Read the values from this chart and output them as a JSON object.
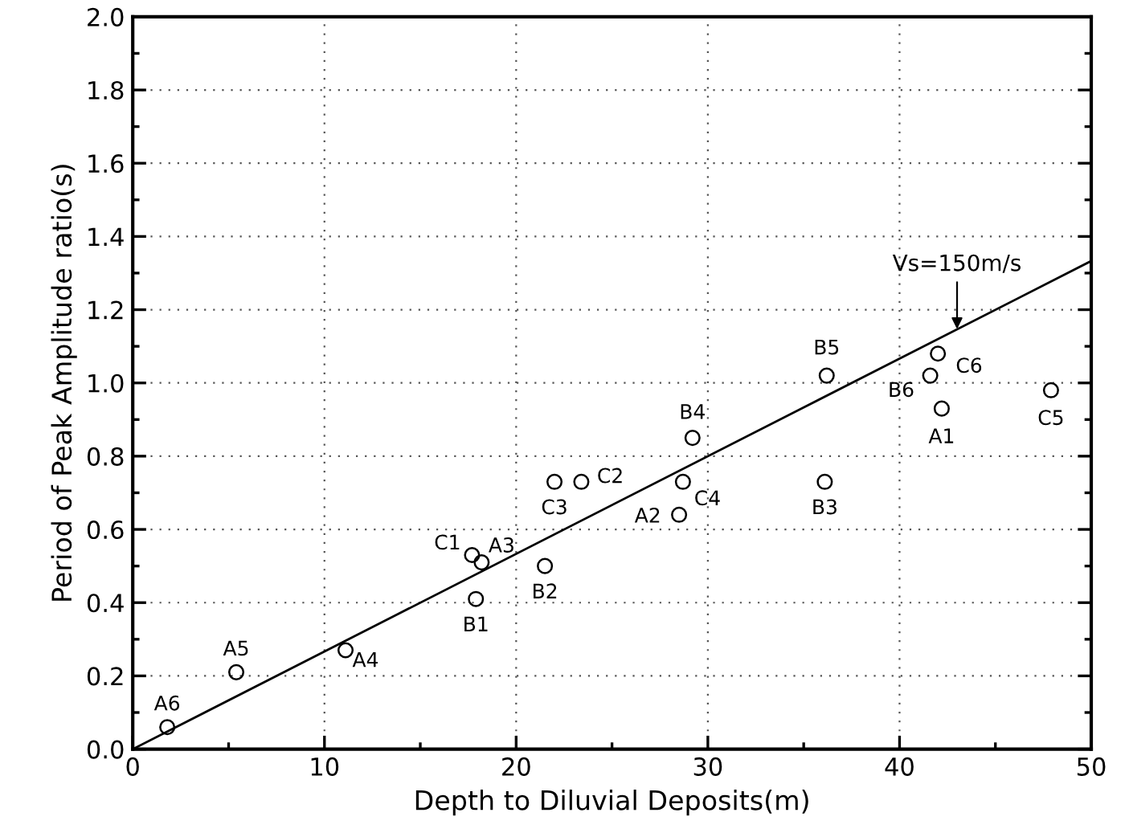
{
  "chart_data": {
    "type": "scatter",
    "xlabel": "Depth to Diluvial Deposits(m)",
    "ylabel": "Period of Peak Amplitude ratio(s)",
    "series": [
      {
        "color": "#000000",
        "marker": "circle",
        "x": [
          1.8,
          5.4,
          11.1,
          17.9,
          17.7,
          18.2,
          21.5,
          22.0,
          23.4,
          28.7,
          28.5,
          29.2,
          36.2,
          36.1,
          41.6,
          42.0,
          42.2,
          47.9
        ],
        "values": [
          0.06,
          0.21,
          0.27,
          0.41,
          0.53,
          0.51,
          0.5,
          0.73,
          0.73,
          0.73,
          0.64,
          0.85,
          1.02,
          0.73,
          1.02,
          1.08,
          0.93,
          0.98
        ]
      },
      {
        "type": "line",
        "color": "#000000",
        "marker": "none",
        "line_style": "solid",
        "x": [
          0,
          50
        ],
        "values": [
          0,
          1.333
        ]
      }
    ],
    "annotations": [
      {
        "text": "A6",
        "x": 1.8,
        "y": 0.06
      },
      {
        "text": "A5",
        "x": 5.4,
        "y": 0.21
      },
      {
        "text": "A4",
        "x": 11.1,
        "y": 0.27
      },
      {
        "text": "B1",
        "x": 17.9,
        "y": 0.41
      },
      {
        "text": "C1",
        "x": 17.7,
        "y": 0.53
      },
      {
        "text": "A3",
        "x": 18.2,
        "y": 0.51
      },
      {
        "text": "B2",
        "x": 21.5,
        "y": 0.5
      },
      {
        "text": "C3",
        "x": 22.0,
        "y": 0.73
      },
      {
        "text": "C2",
        "x": 23.4,
        "y": 0.73
      },
      {
        "text": "C4",
        "x": 28.7,
        "y": 0.73
      },
      {
        "text": "A2",
        "x": 28.5,
        "y": 0.64
      },
      {
        "text": "B4",
        "x": 29.2,
        "y": 0.85
      },
      {
        "text": "B5",
        "x": 36.2,
        "y": 1.02
      },
      {
        "text": "B3",
        "x": 36.1,
        "y": 0.73
      },
      {
        "text": "B6",
        "x": 41.6,
        "y": 1.02
      },
      {
        "text": "C6",
        "x": 42.0,
        "y": 1.08
      },
      {
        "text": "A1",
        "x": 42.2,
        "y": 0.93
      },
      {
        "text": "C5",
        "x": 47.9,
        "y": 0.98
      },
      {
        "text": "Vs=150m/s",
        "x": 43.0,
        "y": 1.147
      }
    ],
    "xlim": [
      0,
      50
    ],
    "xticks": [
      0,
      10,
      20,
      30,
      40,
      50
    ],
    "ylim": [
      0,
      2.0
    ],
    "yticks": [
      {
        "value": 0,
        "label": "0.0"
      },
      {
        "value": 0.2,
        "label": "0.2"
      },
      {
        "value": 0.4,
        "label": "0.4"
      },
      {
        "value": 0.6,
        "label": "0.6"
      },
      {
        "value": 0.8,
        "label": "0.8"
      },
      {
        "value": 1.0,
        "label": "1.0"
      },
      {
        "value": 1.2,
        "label": "1.2"
      },
      {
        "value": 1.4,
        "label": "1.4"
      },
      {
        "value": 1.6,
        "label": "1.6"
      },
      {
        "value": 1.8,
        "label": "1.8"
      },
      {
        "value": 2.0,
        "label": "2.0"
      }
    ],
    "grid": true,
    "legend": false
  }
}
